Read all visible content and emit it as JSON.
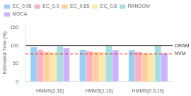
{
  "chart_data": {
    "type": "bar",
    "categories": [
      "HMMS(2,16)",
      "HMMS(1,16)",
      "HMMS(0.5,16)"
    ],
    "series": [
      {
        "name": "EC_0.95",
        "values": [
          96,
          88,
          87
        ]
      },
      {
        "name": "EC_0.9",
        "values": [
          88,
          85,
          83
        ]
      },
      {
        "name": "EC_0.85",
        "values": [
          83,
          82,
          79
        ]
      },
      {
        "name": "EC_0.8",
        "values": [
          81,
          81,
          78
        ]
      },
      {
        "name": "RANDOM",
        "values": [
          98,
          99,
          99
        ]
      },
      {
        "name": "MOCA",
        "values": [
          93,
          87,
          79
        ]
      }
    ],
    "ylabel": "Estimated Time (%)",
    "ylim": [
      0,
      160
    ],
    "yticks": [
      0,
      50,
      100,
      150
    ],
    "grid": false,
    "legend": "upper left",
    "annotations": [
      {
        "text": "DRAM",
        "y": 100,
        "color": "#444444",
        "line_style": "solid"
      },
      {
        "text": "NVM",
        "y": 77,
        "color": "red",
        "line_style": "dashed"
      }
    ]
  }
}
